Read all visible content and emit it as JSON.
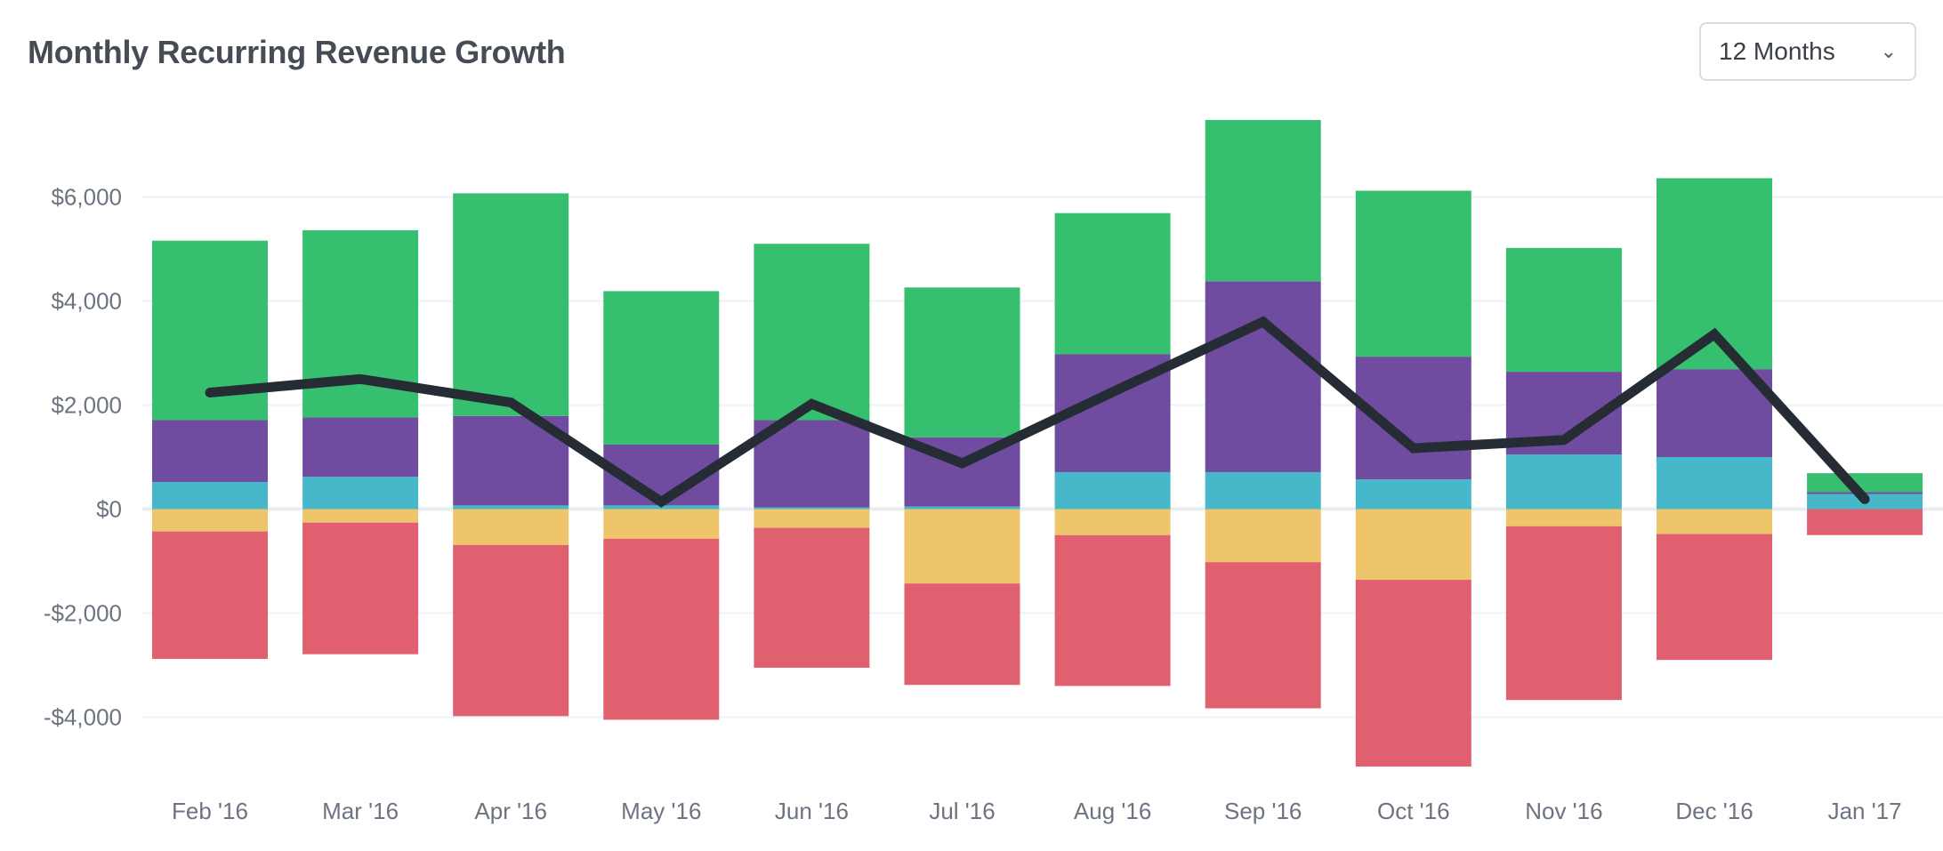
{
  "header": {
    "title": "Monthly Recurring Revenue Growth"
  },
  "controls": {
    "period_select": {
      "value": "12 Months",
      "icon": "chevron-down-icon"
    }
  },
  "chart_data": {
    "type": "bar",
    "stacked": true,
    "title": "Monthly Recurring Revenue Growth",
    "categories": [
      "Feb '16",
      "Mar '16",
      "Apr '16",
      "May '16",
      "Jun '16",
      "Jul '16",
      "Aug '16",
      "Sep '16",
      "Oct '16",
      "Nov '16",
      "Dec '16",
      "Jan '17"
    ],
    "ylim": [
      -5000,
      7500
    ],
    "yticks": [
      -4000,
      -2000,
      0,
      2000,
      4000,
      6000
    ],
    "ytick_labels": [
      "-$4,000",
      "-$2,000",
      "$0",
      "$2,000",
      "$4,000",
      "$6,000"
    ],
    "grid": true,
    "series": [
      {
        "color": "#47b7ca",
        "values": [
          520,
          620,
          70,
          70,
          30,
          50,
          710,
          710,
          570,
          1050,
          1000,
          290
        ]
      },
      {
        "color": "#6f4ca0",
        "values": [
          1190,
          1140,
          1720,
          1170,
          1680,
          1330,
          2270,
          3670,
          2360,
          1590,
          1690,
          40
        ]
      },
      {
        "color": "#36bf6f",
        "values": [
          3450,
          3600,
          4280,
          2950,
          3390,
          2880,
          2710,
          3100,
          3190,
          2380,
          3670,
          360
        ]
      },
      {
        "color": "#eec56a",
        "values": [
          -430,
          -260,
          -690,
          -570,
          -360,
          -1430,
          -500,
          -1020,
          -1360,
          -330,
          -480,
          0
        ]
      },
      {
        "color": "#e06070",
        "values": [
          -2450,
          -2530,
          -3290,
          -3480,
          -2690,
          -1950,
          -2900,
          -2810,
          -3590,
          -3340,
          -2420,
          -500
        ]
      }
    ],
    "line": {
      "color": "#262c33",
      "values": [
        2240,
        2500,
        2050,
        140,
        2020,
        880,
        2250,
        3600,
        1170,
        1330,
        3360,
        190
      ]
    }
  }
}
